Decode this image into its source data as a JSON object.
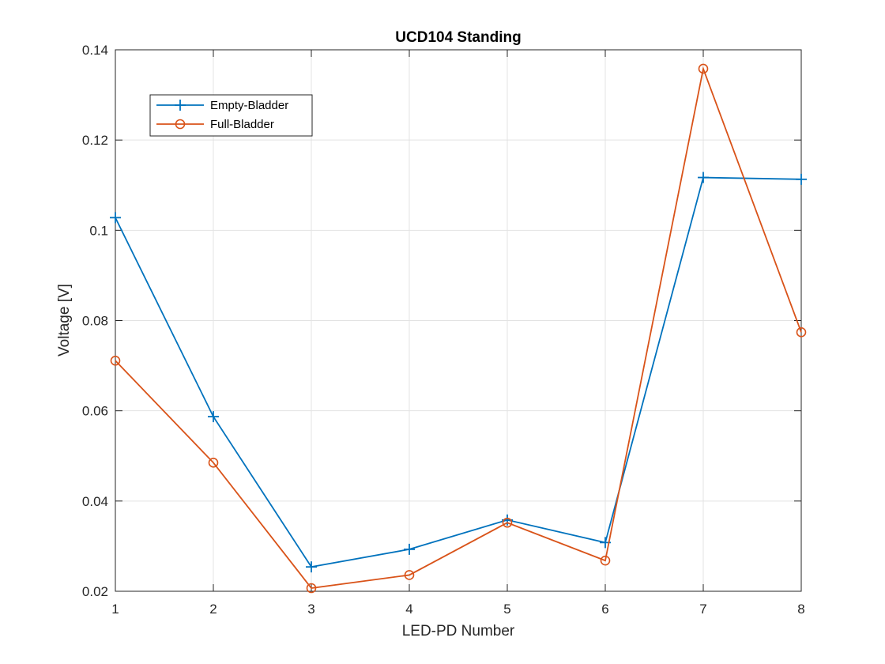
{
  "chart_data": {
    "type": "line",
    "title": "UCD104 Standing",
    "xlabel": "LED-PD Number",
    "ylabel": "Voltage [V]",
    "x": [
      1,
      2,
      3,
      4,
      5,
      6,
      7,
      8
    ],
    "xlim": [
      1,
      8
    ],
    "ylim": [
      0.02,
      0.14
    ],
    "xticks": [
      "1",
      "2",
      "3",
      "4",
      "5",
      "6",
      "7",
      "8"
    ],
    "yticks": [
      "0.02",
      "0.04",
      "0.06",
      "0.08",
      "0.1",
      "0.12",
      "0.14"
    ],
    "grid": true,
    "legend_position": "top-left",
    "series": [
      {
        "name": "Empty-Bladder",
        "color": "#0072BD",
        "marker": "plus",
        "values": [
          0.1028,
          0.0587,
          0.0254,
          0.0293,
          0.0358,
          0.0308,
          0.1117,
          0.1113
        ]
      },
      {
        "name": "Full-Bladder",
        "color": "#D95319",
        "marker": "circle",
        "values": [
          0.0711,
          0.0485,
          0.0207,
          0.0236,
          0.0352,
          0.0268,
          0.1358,
          0.0774
        ]
      }
    ]
  }
}
